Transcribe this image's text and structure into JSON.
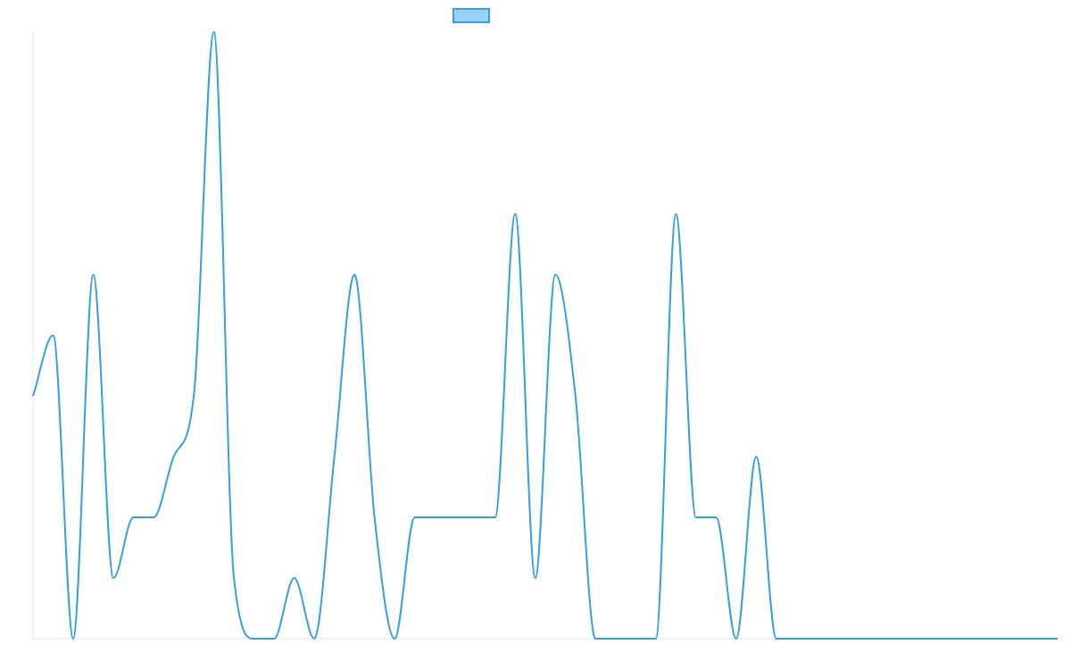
{
  "chart_data": {
    "type": "line",
    "title": "",
    "xlabel": "",
    "ylabel": "",
    "grid": false,
    "legend_position": "top-center",
    "ylim": [
      0,
      10
    ],
    "x": [
      0,
      1,
      2,
      3,
      4,
      5,
      6,
      7,
      8,
      9,
      10,
      11,
      12,
      13,
      14,
      15,
      16,
      17,
      18,
      19,
      20,
      21,
      22,
      23,
      24,
      25,
      26,
      27,
      28,
      29,
      30,
      31,
      32,
      33,
      34,
      35,
      36,
      37,
      38,
      39,
      40,
      41,
      42,
      43,
      44,
      45,
      46,
      47,
      48,
      49,
      50,
      51
    ],
    "series": [
      {
        "name": "",
        "color": "#369ee3",
        "fill": "#9ad0f5",
        "values": [
          4,
          5,
          0,
          6,
          1,
          2,
          2,
          3,
          4,
          10,
          1,
          0,
          0,
          1,
          0,
          3,
          6,
          2,
          0,
          2,
          2,
          2,
          2,
          2,
          7,
          1,
          6,
          4,
          0,
          0,
          0,
          0,
          7,
          2,
          2,
          0,
          3,
          0,
          0,
          0,
          0,
          0,
          0,
          0,
          0,
          0,
          0,
          0,
          0,
          0,
          0,
          0
        ]
      }
    ]
  }
}
